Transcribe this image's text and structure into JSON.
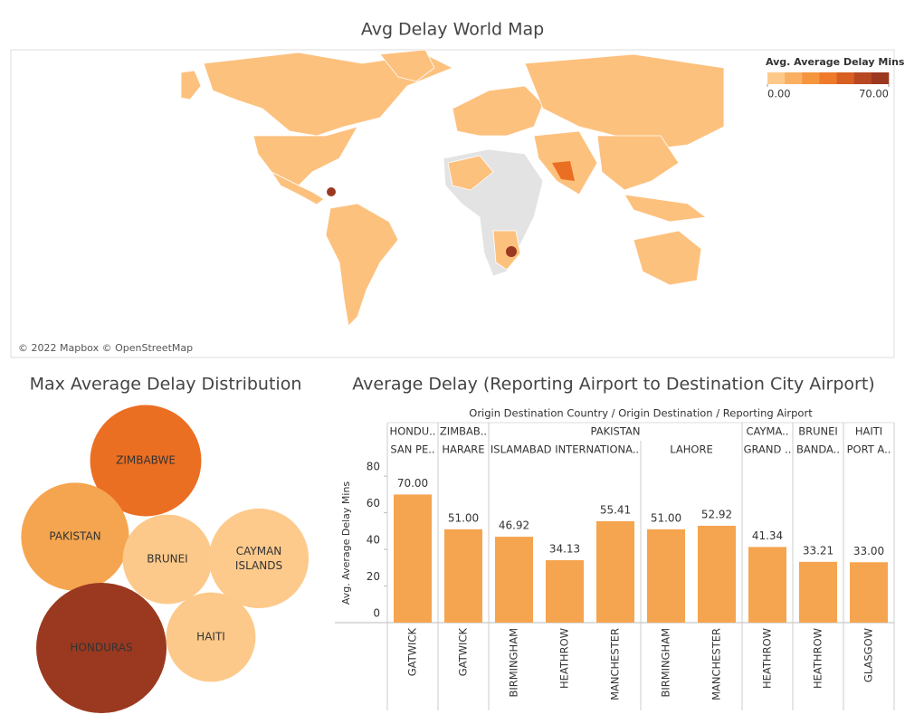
{
  "chart_data": [
    {
      "type": "map",
      "title": "Avg Delay World Map",
      "legend_title": "Avg. Average Delay Mins",
      "legend_ticks": [
        {
          "value": 0,
          "label": "0.00"
        },
        {
          "value": 70,
          "label": "70.00"
        }
      ],
      "colors": [
        "#fdc98a",
        "#f9b062",
        "#f5963f",
        "#ee7a2a",
        "#d85f22",
        "#b74822",
        "#9b3920"
      ],
      "attribution": "© 2022 Mapbox © OpenStreetMap"
    },
    {
      "type": "bubble",
      "title": "Max Average Delay Distribution",
      "categories": [
        "ZIMBABWE",
        "PAKISTAN",
        "BRUNEI",
        "CAYMAN ISLANDS",
        "HONDURAS",
        "HAITI"
      ],
      "values": [
        51,
        48,
        33,
        41,
        70,
        33
      ],
      "colors": [
        "#eb6f23",
        "#f5a54f",
        "#fdc98a",
        "#fdca8c",
        "#9b3920",
        "#fdc98a"
      ]
    },
    {
      "type": "bar",
      "title": "Average Delay (Reporting Airport to Destination City Airport)",
      "x_title": "Origin Destination Country / Origin Destination / Reporting Airport",
      "y_title": "Avg. Average Delay Mins",
      "country": [
        "HONDU..",
        "ZIMBAB..",
        "PAKISTAN",
        null,
        null,
        null,
        null,
        "CAYMA..",
        "BRUNEI",
        "HAITI"
      ],
      "origin": [
        "SAN PE..",
        "HARARE",
        "ISLAMABAD INTERNATIONA..",
        null,
        null,
        "LAHORE",
        null,
        "GRAND ..",
        "BANDA..",
        "PORT A.."
      ],
      "categories": [
        "GATWICK",
        "GATWICK",
        "BIRMINGHAM",
        "HEATHROW",
        "MANCHESTER",
        "BIRMINGHAM",
        "MANCHESTER",
        "HEATHROW",
        "HEATHROW",
        "GLASGOW"
      ],
      "values": [
        70,
        51,
        46.92,
        34.13,
        55.41,
        51,
        52.92,
        41.34,
        33.21,
        33
      ],
      "value_labels": [
        "70.00",
        "51.00",
        "46.92",
        "34.13",
        "55.41",
        "51.00",
        "52.92",
        "41.34",
        "33.21",
        "33.00"
      ],
      "color": "#f5a54f",
      "ylim": [
        0,
        88
      ],
      "yticks": [
        0,
        20,
        40,
        60,
        80
      ]
    }
  ]
}
